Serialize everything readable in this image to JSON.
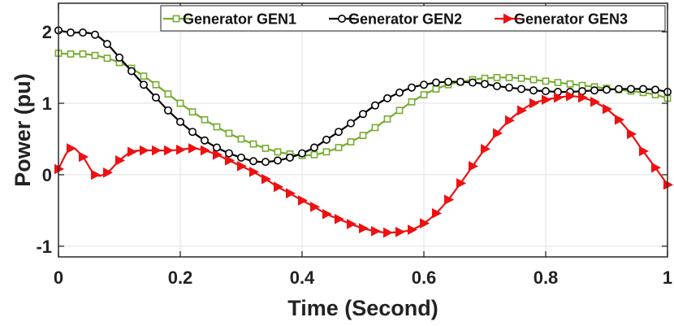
{
  "chart_data": {
    "type": "line",
    "xlabel": "Time (Second)",
    "ylabel": "Power (pu)",
    "xlim": [
      0,
      1
    ],
    "ylim": [
      -1.15,
      2.4
    ],
    "x_ticks": [
      0,
      0.2,
      0.4,
      0.6,
      0.8,
      1
    ],
    "x_tick_labels": [
      "0",
      "0.2",
      "0.4",
      "0.6",
      "0.8",
      "1"
    ],
    "y_ticks": [
      -1,
      0,
      1,
      2
    ],
    "y_tick_labels": [
      "-1",
      "0",
      "1",
      "2"
    ],
    "grid": true,
    "legend_position": "top-right",
    "legend_orientation": "horizontal",
    "series": [
      {
        "name": "Generator GEN1",
        "color": "#77ac30",
        "marker": "square",
        "x": [
          0,
          0.02,
          0.04,
          0.06,
          0.08,
          0.1,
          0.12,
          0.14,
          0.16,
          0.18,
          0.2,
          0.22,
          0.24,
          0.26,
          0.28,
          0.3,
          0.32,
          0.34,
          0.36,
          0.38,
          0.4,
          0.42,
          0.44,
          0.46,
          0.48,
          0.5,
          0.52,
          0.54,
          0.56,
          0.58,
          0.6,
          0.62,
          0.64,
          0.66,
          0.68,
          0.7,
          0.72,
          0.74,
          0.76,
          0.78,
          0.8,
          0.82,
          0.84,
          0.86,
          0.88,
          0.9,
          0.92,
          0.94,
          0.96,
          0.98,
          1.0
        ],
        "y": [
          1.7,
          1.69,
          1.69,
          1.67,
          1.63,
          1.57,
          1.49,
          1.38,
          1.26,
          1.13,
          1.0,
          0.88,
          0.77,
          0.67,
          0.58,
          0.5,
          0.43,
          0.37,
          0.32,
          0.29,
          0.27,
          0.28,
          0.32,
          0.38,
          0.46,
          0.55,
          0.66,
          0.78,
          0.9,
          1.02,
          1.12,
          1.2,
          1.26,
          1.3,
          1.33,
          1.35,
          1.36,
          1.36,
          1.35,
          1.33,
          1.31,
          1.29,
          1.27,
          1.25,
          1.23,
          1.21,
          1.19,
          1.17,
          1.15,
          1.12,
          1.07
        ]
      },
      {
        "name": "Generator GEN2",
        "color": "#000000",
        "marker": "circle",
        "x": [
          0,
          0.02,
          0.04,
          0.06,
          0.08,
          0.1,
          0.12,
          0.14,
          0.16,
          0.18,
          0.2,
          0.22,
          0.24,
          0.26,
          0.28,
          0.3,
          0.32,
          0.34,
          0.36,
          0.38,
          0.4,
          0.42,
          0.44,
          0.46,
          0.48,
          0.5,
          0.52,
          0.54,
          0.56,
          0.58,
          0.6,
          0.62,
          0.64,
          0.66,
          0.68,
          0.7,
          0.72,
          0.74,
          0.76,
          0.78,
          0.8,
          0.82,
          0.84,
          0.86,
          0.88,
          0.9,
          0.92,
          0.94,
          0.96,
          0.98,
          1.0
        ],
        "y": [
          2.02,
          1.99,
          1.99,
          1.96,
          1.83,
          1.64,
          1.45,
          1.26,
          1.08,
          0.9,
          0.74,
          0.6,
          0.48,
          0.38,
          0.3,
          0.24,
          0.19,
          0.18,
          0.2,
          0.24,
          0.3,
          0.38,
          0.49,
          0.6,
          0.72,
          0.85,
          0.97,
          1.07,
          1.15,
          1.22,
          1.26,
          1.29,
          1.3,
          1.3,
          1.29,
          1.27,
          1.24,
          1.22,
          1.2,
          1.18,
          1.17,
          1.16,
          1.16,
          1.17,
          1.18,
          1.19,
          1.2,
          1.2,
          1.2,
          1.19,
          1.16
        ]
      },
      {
        "name": "Generator GEN3",
        "color": "#ee1111",
        "marker": "triangle-right",
        "x": [
          0,
          0.02,
          0.04,
          0.06,
          0.08,
          0.1,
          0.12,
          0.14,
          0.16,
          0.18,
          0.2,
          0.22,
          0.24,
          0.26,
          0.28,
          0.3,
          0.32,
          0.34,
          0.36,
          0.38,
          0.4,
          0.42,
          0.44,
          0.46,
          0.48,
          0.5,
          0.52,
          0.54,
          0.56,
          0.58,
          0.6,
          0.62,
          0.64,
          0.66,
          0.68,
          0.7,
          0.72,
          0.74,
          0.76,
          0.78,
          0.8,
          0.82,
          0.84,
          0.86,
          0.88,
          0.9,
          0.92,
          0.94,
          0.96,
          0.98,
          1.0
        ],
        "y": [
          0.08,
          0.37,
          0.25,
          0.0,
          0.03,
          0.2,
          0.32,
          0.34,
          0.34,
          0.34,
          0.35,
          0.37,
          0.34,
          0.28,
          0.2,
          0.12,
          0.04,
          -0.06,
          -0.17,
          -0.26,
          -0.36,
          -0.45,
          -0.55,
          -0.62,
          -0.69,
          -0.75,
          -0.79,
          -0.81,
          -0.8,
          -0.77,
          -0.68,
          -0.54,
          -0.35,
          -0.12,
          0.12,
          0.36,
          0.58,
          0.76,
          0.9,
          1.0,
          1.05,
          1.08,
          1.1,
          1.08,
          1.02,
          0.92,
          0.77,
          0.57,
          0.33,
          0.1,
          -0.14
        ]
      }
    ]
  }
}
